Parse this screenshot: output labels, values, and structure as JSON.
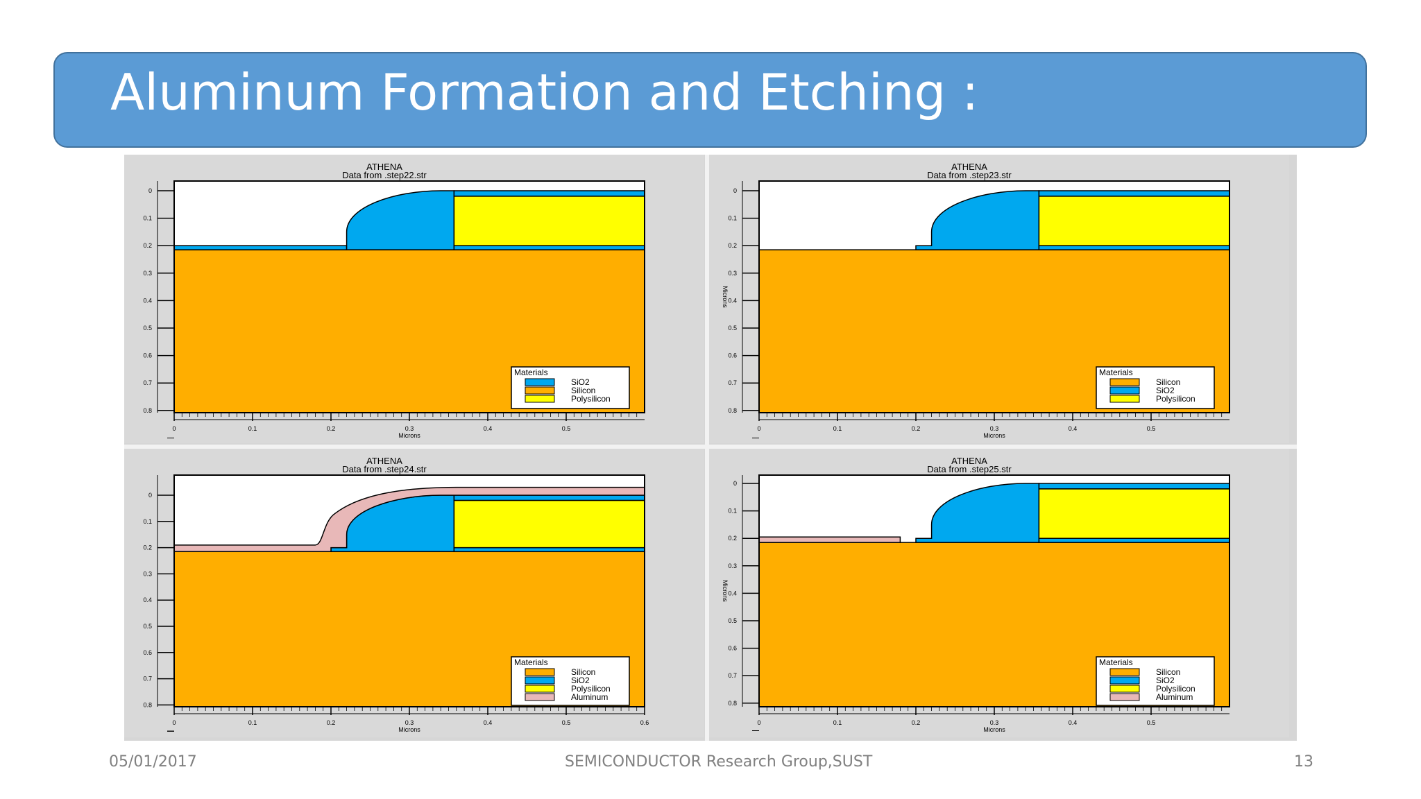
{
  "slide": {
    "title": "Aluminum Formation and Etching :",
    "footer_date": "05/01/2017",
    "footer_center": "SEMICONDUCTOR Research Group,SUST",
    "footer_page": "13"
  },
  "colors": {
    "title_bar": "#5b9bd5",
    "silicon": "#ffae00",
    "sio2": "#00a8ef",
    "polysilicon": "#ffff00",
    "aluminum": "#e8b8b8"
  },
  "panels": [
    {
      "heading1": "ATHENA",
      "heading2": "Data from .step22.str",
      "ylabel": "",
      "xlabel": "Microns",
      "x_ticks": [
        "0",
        "0.1",
        "0.2",
        "0.3",
        "0.4",
        "0.5"
      ],
      "y_ticks": [
        "0",
        "0.1",
        "0.2",
        "0.3",
        "0.4",
        "0.5",
        "0.6",
        "0.7",
        "0.8"
      ],
      "legend_title": "Materials",
      "legend": [
        {
          "label": "SiO2",
          "color": "#00a8ef"
        },
        {
          "label": "Silicon",
          "color": "#ffae00"
        },
        {
          "label": "Polysilicon",
          "color": "#ffff00"
        }
      ]
    },
    {
      "heading1": "ATHENA",
      "heading2": "Data from .step23.str",
      "ylabel": "Microns",
      "xlabel": "Microns",
      "x_ticks": [
        "0",
        "0.1",
        "0.2",
        "0.3",
        "0.4",
        "0.5"
      ],
      "y_ticks": [
        "0",
        "0.1",
        "0.2",
        "0.3",
        "0.4",
        "0.5",
        "0.6",
        "0.7",
        "0.8"
      ],
      "legend_title": "Materials",
      "legend": [
        {
          "label": "Silicon",
          "color": "#ffae00"
        },
        {
          "label": "SiO2",
          "color": "#00a8ef"
        },
        {
          "label": "Polysilicon",
          "color": "#ffff00"
        }
      ]
    },
    {
      "heading1": "ATHENA",
      "heading2": "Data from .step24.str",
      "ylabel": "",
      "xlabel": "Microns",
      "x_ticks": [
        "0",
        "0.1",
        "0.2",
        "0.3",
        "0.4",
        "0.5",
        "0.6"
      ],
      "y_ticks": [
        "0",
        "0.1",
        "0.2",
        "0.3",
        "0.4",
        "0.5",
        "0.6",
        "0.7",
        "0.8"
      ],
      "legend_title": "Materials",
      "legend": [
        {
          "label": "Silicon",
          "color": "#ffae00"
        },
        {
          "label": "SiO2",
          "color": "#00a8ef"
        },
        {
          "label": "Polysilicon",
          "color": "#ffff00"
        },
        {
          "label": "Aluminum",
          "color": "#e8b8b8"
        }
      ]
    },
    {
      "heading1": "ATHENA",
      "heading2": "Data from .step25.str",
      "ylabel": "Microns",
      "xlabel": "Microns",
      "x_ticks": [
        "0",
        "0.1",
        "0.2",
        "0.3",
        "0.4",
        "0.5"
      ],
      "y_ticks": [
        "0",
        "0.1",
        "0.2",
        "0.3",
        "0.4",
        "0.5",
        "0.6",
        "0.7",
        "0.8"
      ],
      "legend_title": "Materials",
      "legend": [
        {
          "label": "Silicon",
          "color": "#ffae00"
        },
        {
          "label": "SiO2",
          "color": "#00a8ef"
        },
        {
          "label": "Polysilicon",
          "color": "#ffff00"
        },
        {
          "label": "Aluminum",
          "color": "#e8b8b8"
        }
      ]
    }
  ]
}
